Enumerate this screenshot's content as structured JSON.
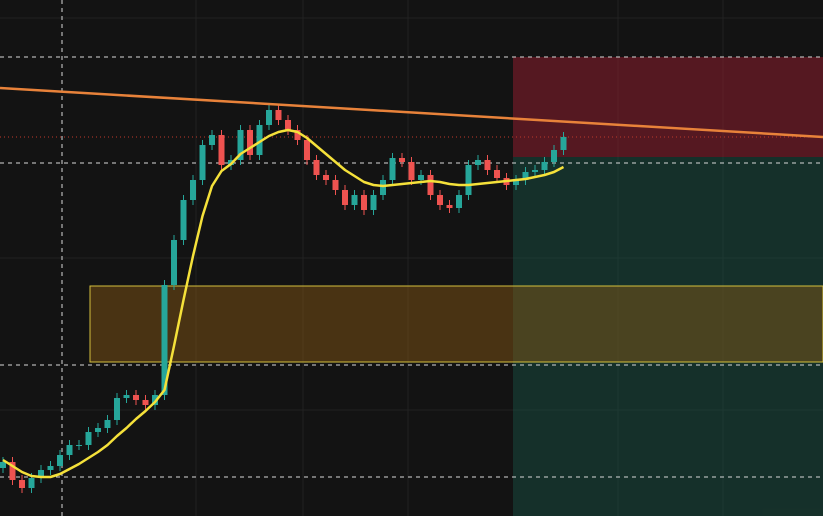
{
  "chart_data": {
    "type": "candlestick",
    "ylim": [
      0,
      516
    ],
    "up_color": "#26a69a",
    "down_color": "#ef5350",
    "ma_color": "#f5e13a",
    "open": [
      48,
      54,
      36,
      28,
      38,
      46,
      50,
      61,
      71,
      71,
      84,
      88,
      96,
      118,
      121,
      116,
      111,
      121,
      231,
      276,
      316,
      336,
      371,
      381,
      351,
      356,
      386,
      361,
      391,
      406,
      396,
      386,
      376,
      356,
      341,
      336,
      326,
      311,
      321,
      306,
      321,
      336,
      358,
      354,
      336,
      341,
      321,
      311,
      308,
      321,
      351,
      356,
      346,
      338,
      331,
      336,
      344,
      346,
      354,
      366
    ],
    "high": [
      59,
      59,
      41,
      43,
      51,
      55,
      66,
      76,
      76,
      89,
      93,
      101,
      123,
      126,
      126,
      121,
      126,
      236,
      281,
      321,
      341,
      376,
      386,
      386,
      361,
      391,
      391,
      396,
      411,
      411,
      401,
      391,
      381,
      361,
      346,
      341,
      331,
      326,
      326,
      326,
      341,
      363,
      363,
      359,
      346,
      346,
      326,
      316,
      326,
      356,
      361,
      361,
      351,
      343,
      341,
      349,
      351,
      359,
      371,
      384
    ],
    "low": [
      43,
      31,
      23,
      23,
      33,
      41,
      45,
      56,
      66,
      66,
      79,
      83,
      91,
      113,
      111,
      106,
      106,
      116,
      226,
      271,
      311,
      331,
      366,
      346,
      346,
      351,
      356,
      356,
      386,
      391,
      381,
      371,
      351,
      336,
      331,
      321,
      306,
      306,
      301,
      301,
      316,
      331,
      349,
      331,
      331,
      316,
      306,
      303,
      303,
      316,
      346,
      341,
      333,
      326,
      326,
      331,
      339,
      341,
      349,
      361
    ],
    "close": [
      54,
      36,
      28,
      38,
      46,
      50,
      61,
      71,
      71,
      84,
      88,
      96,
      118,
      121,
      116,
      111,
      121,
      231,
      276,
      316,
      336,
      371,
      381,
      351,
      356,
      386,
      361,
      391,
      406,
      396,
      386,
      376,
      356,
      341,
      336,
      326,
      311,
      321,
      306,
      321,
      336,
      358,
      354,
      336,
      341,
      321,
      311,
      308,
      321,
      351,
      356,
      346,
      338,
      331,
      336,
      344,
      346,
      354,
      366,
      379
    ],
    "ma": [
      56,
      50,
      44,
      40,
      39,
      39,
      42,
      47,
      52,
      58,
      64,
      71,
      80,
      88,
      97,
      105,
      114,
      126,
      170,
      216,
      260,
      300,
      330,
      345,
      352,
      362,
      368,
      374,
      380,
      384,
      386,
      384,
      378,
      370,
      362,
      354,
      346,
      340,
      334,
      331,
      330,
      331,
      332,
      333,
      334,
      335,
      334,
      332,
      331,
      331,
      332,
      333,
      334,
      335,
      336,
      337,
      339,
      341,
      344,
      349
    ]
  }
}
